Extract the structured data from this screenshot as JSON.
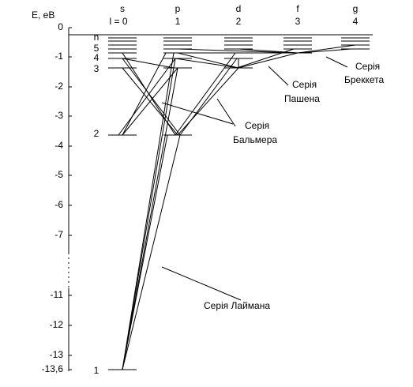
{
  "axis": {
    "label": "E, еВ",
    "ticks": [
      "0",
      "-1",
      "-2",
      "-3",
      "-4",
      "-5",
      "-6",
      "-7",
      "-11",
      "-12",
      "-13",
      "-13,6"
    ]
  },
  "columns": [
    {
      "name": "s",
      "l": "l = 0"
    },
    {
      "name": "p",
      "l": "1"
    },
    {
      "name": "d",
      "l": "2"
    },
    {
      "name": "f",
      "l": "3"
    },
    {
      "name": "g",
      "l": "4"
    }
  ],
  "levels": [
    "n",
    "5",
    "4",
    "3",
    "2",
    "1"
  ],
  "series": [
    "Серія Бальмера",
    "Серія Пашена",
    "Серія Бреккета",
    "Серія Лаймана"
  ]
}
